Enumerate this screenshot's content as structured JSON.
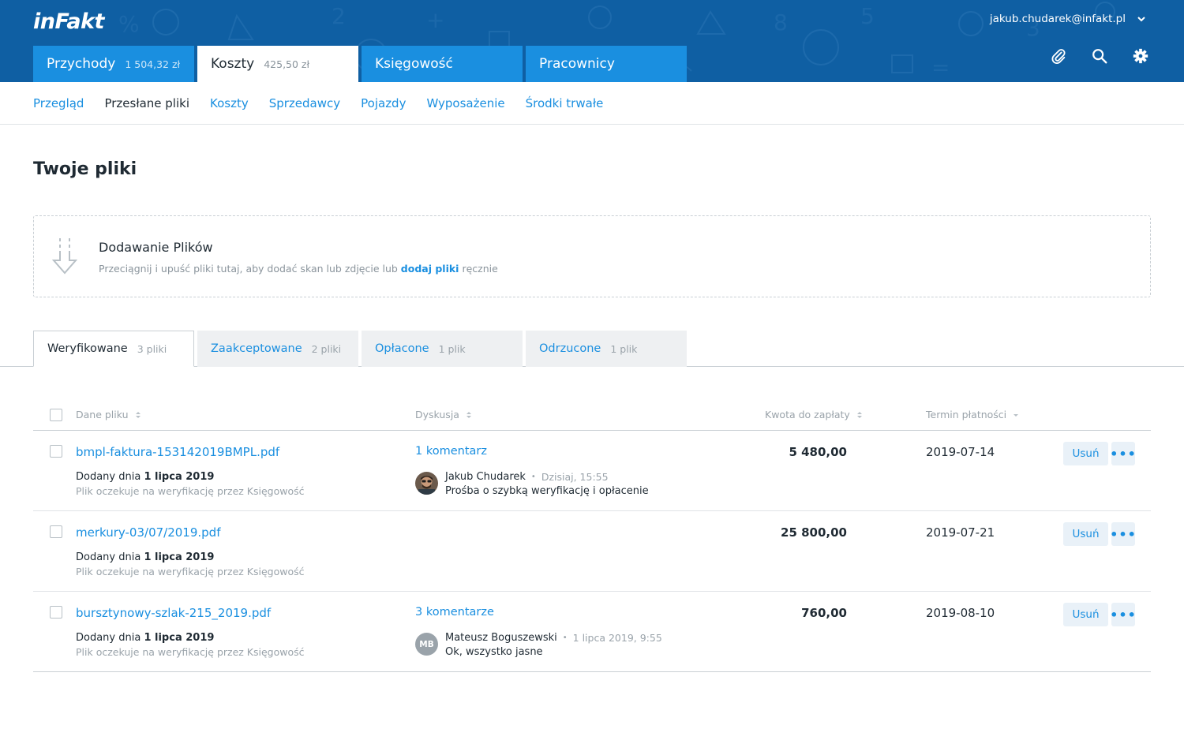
{
  "header": {
    "logo": "inFakt",
    "user_email": "jakub.chudarek@infakt.pl",
    "icons": [
      "paperclip-icon",
      "search-icon",
      "gear-icon"
    ],
    "colors": {
      "header_bg": "#0f5fa3",
      "tab_bg": "#1a8fe0",
      "accent": "#1a8fe0"
    }
  },
  "main_tabs": [
    {
      "label": "Przychody",
      "amount": "1 504,32 zł"
    },
    {
      "label": "Koszty",
      "amount": "425,50 zł",
      "active": true
    },
    {
      "label": "Księgowość",
      "amount": ""
    },
    {
      "label": "Pracownicy",
      "amount": ""
    }
  ],
  "subnav": [
    "Przegląd",
    "Przesłane pliki",
    "Koszty",
    "Sprzedawcy",
    "Pojazdy",
    "Wyposażenie",
    "Środki trwałe"
  ],
  "page": {
    "title": "Twoje pliki"
  },
  "dropzone": {
    "title": "Dodawanie Plików",
    "desc_before": "Przeciągnij i upuść pliki tutaj, aby dodać skan lub zdjęcie lub ",
    "desc_link": "dodaj pliki",
    "desc_after": " ręcznie"
  },
  "status_tabs": [
    {
      "label": "Weryfikowane",
      "count": "3 pliki",
      "active": true
    },
    {
      "label": "Zaakceptowane",
      "count": "2 pliki"
    },
    {
      "label": "Opłacone",
      "count": "1 plik"
    },
    {
      "label": "Odrzucone",
      "count": "1 plik"
    }
  ],
  "table": {
    "headers": {
      "file": "Dane pliku",
      "discussion": "Dyskusja",
      "amount": "Kwota do zapłaty",
      "due": "Termin płatności"
    },
    "rows": [
      {
        "file_name": "bmpl-faktura-153142019BMPL.pdf",
        "added_prefix": "Dodany dnia ",
        "added_date": "1 lipca 2019",
        "status": "Plik oczekuje na weryfikację przez Księgowość",
        "comments": "1 komentarz",
        "comment_author": "Jakub Chudarek",
        "comment_time": "Dzisiaj, 15:55",
        "comment_text": "Prośba o szybką weryfikację i opłacenie",
        "avatar": "photo",
        "amount": "5 480,00",
        "due": "2019-07-14",
        "delete": "Usuń",
        "more": "•••"
      },
      {
        "file_name": "merkury-03/07/2019.pdf",
        "added_prefix": "Dodany dnia ",
        "added_date": "1 lipca 2019",
        "status": "Plik oczekuje na weryfikację przez Księgowość",
        "comments": "",
        "amount": "25 800,00",
        "due": "2019-07-21",
        "delete": "Usuń",
        "more": "•••"
      },
      {
        "file_name": "bursztynowy-szlak-215_2019.pdf",
        "added_prefix": "Dodany dnia ",
        "added_date": "1 lipca 2019",
        "status": "Plik oczekuje na weryfikację przez Księgowość",
        "comments": "3 komentarze",
        "comment_author": "Mateusz Boguszewski",
        "comment_time": "1 lipca 2019, 9:55",
        "comment_text": "Ok, wszystko jasne",
        "avatar": "MB",
        "amount": "760,00",
        "due": "2019-08-10",
        "delete": "Usuń",
        "more": "•••"
      }
    ]
  }
}
